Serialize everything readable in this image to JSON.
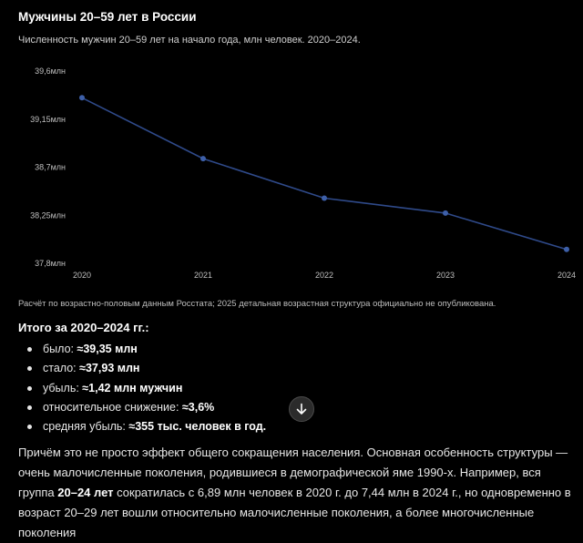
{
  "chart_data": {
    "type": "line",
    "title": "Мужчины 20–59 лет в России",
    "subtitle": "Численность мужчин 20–59 лет на начало года, млн человек. 2020–2024.",
    "x": [
      2020,
      2021,
      2022,
      2023,
      2024
    ],
    "x_tick_labels": [
      "2020",
      "2021",
      "2022",
      "2023",
      "2024"
    ],
    "series": [
      {
        "values": [
          39.35,
          38.78,
          38.41,
          38.27,
          37.93
        ]
      }
    ],
    "ylim": [
      37.8,
      39.6
    ],
    "y_ticks": [
      39.6,
      39.15,
      38.7,
      38.25,
      37.8
    ],
    "y_tick_labels": [
      "39,6млн",
      "39,15млн",
      "38,7млн",
      "38,25млн",
      "37,8млн"
    ],
    "grid": false,
    "line_color": "#2f4a8a",
    "marker_color": "#3d5fa8"
  },
  "note": "Расчёт по возрастно-половым данным Росстата; 2025 детальная возрастная структура официально не опубликована.",
  "summary": {
    "title": "Итого за 2020–2024 гг.:",
    "items": [
      {
        "label": "было: ",
        "value": "≈39,35 млн"
      },
      {
        "label": "стало: ",
        "value": "≈37,93 млн"
      },
      {
        "label": "убыль: ",
        "value": "≈1,42 млн мужчин"
      },
      {
        "label": "относительное снижение: ",
        "value": "≈3,6%"
      },
      {
        "label": "средняя убыль: ",
        "value": "≈355 тыс. человек в год."
      }
    ]
  },
  "paragraph": {
    "before": "Причём это не просто эффект общего сокращения населения. Основная особенность структуры — очень малочисленные поколения, родившиеся в демографической яме 1990-х. Например, вся группа ",
    "bold": "20–24 лет",
    "after": " сократилась с 6,89 млн человек в 2020 г. до 7,44 млн в 2024 г., но одновременно в возраст 20–29 лет вошли относительно малочисленные поколения, а более многочисленные поколения"
  },
  "scroll_button": {
    "icon": "arrow-down-icon"
  }
}
